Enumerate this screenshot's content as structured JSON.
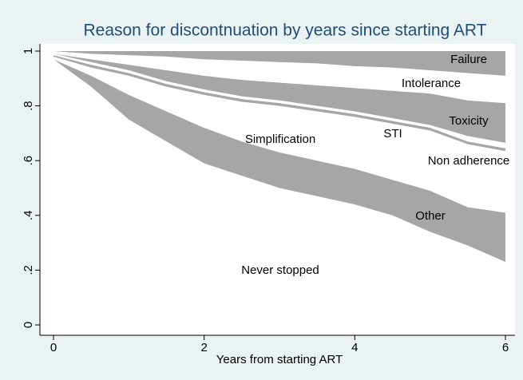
{
  "chart_data": {
    "type": "stacked_area",
    "title": "Reason for discontnuation by years since starting ART",
    "x_label": "Years from starting ART",
    "x": [
      0,
      0.5,
      1,
      1.5,
      2,
      2.5,
      3,
      3.5,
      4,
      4.5,
      5,
      5.5,
      6
    ],
    "series": [
      {
        "name": "Never stopped",
        "color": "#ffffff",
        "values": [
          0.97,
          0.87,
          0.75,
          0.67,
          0.59,
          0.545,
          0.5,
          0.47,
          0.44,
          0.4,
          0.34,
          0.29,
          0.23
        ]
      },
      {
        "name": "Other",
        "color": "#a6a6a6",
        "values": [
          0,
          0.04,
          0.09,
          0.11,
          0.13,
          0.125,
          0.13,
          0.13,
          0.13,
          0.13,
          0.15,
          0.14,
          0.18
        ]
      },
      {
        "name": "Simplification",
        "color": "#ffffff",
        "values": [
          0.01,
          0.03,
          0.07,
          0.09,
          0.12,
          0.145,
          0.17,
          0.18,
          0.19,
          0.205,
          0.22,
          0.23,
          0.225
        ]
      },
      {
        "name": "STI",
        "color": "#a6a6a6",
        "values": [
          0.005,
          0.01,
          0.01,
          0.01,
          0.01,
          0.01,
          0.01,
          0.01,
          0.01,
          0.01,
          0.01,
          0.01,
          0.01
        ]
      },
      {
        "name": "Non adherence",
        "color": "#ffffff",
        "values": [
          0.005,
          0.01,
          0.01,
          0.01,
          0.01,
          0.01,
          0.01,
          0.01,
          0.01,
          0.01,
          0.01,
          0.02,
          0.02
        ]
      },
      {
        "name": "Toxicity",
        "color": "#a6a6a6",
        "values": [
          0,
          0.01,
          0.02,
          0.04,
          0.05,
          0.06,
          0.065,
          0.075,
          0.085,
          0.1,
          0.115,
          0.13,
          0.145
        ]
      },
      {
        "name": "Intolerance",
        "color": "#ffffff",
        "values": [
          0.01,
          0.02,
          0.035,
          0.05,
          0.06,
          0.07,
          0.075,
          0.08,
          0.08,
          0.085,
          0.085,
          0.1,
          0.1
        ]
      },
      {
        "name": "Failure",
        "color": "#a6a6a6",
        "values": [
          0,
          0.01,
          0.015,
          0.02,
          0.03,
          0.035,
          0.04,
          0.045,
          0.055,
          0.06,
          0.07,
          0.08,
          0.09
        ]
      }
    ],
    "xlim": [
      0,
      6
    ],
    "xticks": [
      0,
      2,
      4,
      6
    ],
    "ylim": [
      0,
      1
    ],
    "yticks": [
      0,
      {
        "value": 0.2,
        "label": ".2"
      },
      {
        "value": 0.4,
        "label": ".4"
      },
      {
        "value": 0.6,
        "label": ".6"
      },
      {
        "value": 0.8,
        "label": ".8"
      },
      1
    ]
  }
}
